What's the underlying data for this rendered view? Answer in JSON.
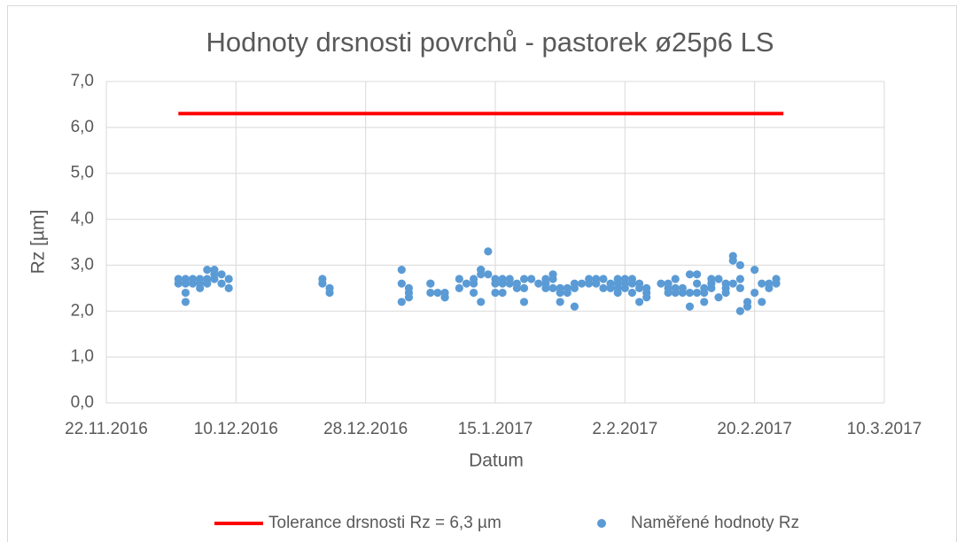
{
  "chart_data": {
    "type": "scatter",
    "title": "Hodnoty drsnosti povrchů - pastorek ø25p6 LS",
    "x_label": "Datum",
    "y_label": "Rz [µm]",
    "grid": true,
    "legend": "bottom",
    "xlim": [
      "2016-11-22",
      "2017-03-10"
    ],
    "xticks": [
      {
        "value": "2016-11-22",
        "label": "22.11.2016"
      },
      {
        "value": "2016-12-10",
        "label": "10.12.2016"
      },
      {
        "value": "2016-12-28",
        "label": "28.12.2016"
      },
      {
        "value": "2017-01-15",
        "label": "15.1.2017"
      },
      {
        "value": "2017-02-02",
        "label": "2.2.2017"
      },
      {
        "value": "2017-02-20",
        "label": "20.2.2017"
      },
      {
        "value": "2017-03-10",
        "label": "10.3.2017"
      }
    ],
    "ylim": [
      0,
      7
    ],
    "yticks": [
      {
        "value": 0,
        "label": "0,0"
      },
      {
        "value": 1,
        "label": "1,0"
      },
      {
        "value": 2,
        "label": "2,0"
      },
      {
        "value": 3,
        "label": "3,0"
      },
      {
        "value": 4,
        "label": "4,0"
      },
      {
        "value": 5,
        "label": "5,0"
      },
      {
        "value": 6,
        "label": "6,0"
      },
      {
        "value": 7,
        "label": "7,0"
      }
    ],
    "series": [
      {
        "name": "Tolerance drsnosti Rz = 6,3 µm",
        "color": "#ff0000",
        "mark": "line",
        "x": [
          "2016-12-02",
          "2017-02-24"
        ],
        "values": [
          6.3,
          6.3
        ]
      },
      {
        "name": "Naměřené hodnoty Rz",
        "color": "#5b9bd5",
        "mark": "point",
        "x": [
          "2016-12-02",
          "2016-12-02",
          "2016-12-03",
          "2016-12-03",
          "2016-12-03",
          "2016-12-03",
          "2016-12-04",
          "2016-12-04",
          "2016-12-05",
          "2016-12-05",
          "2016-12-05",
          "2016-12-06",
          "2016-12-06",
          "2016-12-06",
          "2016-12-07",
          "2016-12-07",
          "2016-12-07",
          "2016-12-08",
          "2016-12-08",
          "2016-12-09",
          "2016-12-09",
          "2016-12-22",
          "2016-12-22",
          "2016-12-23",
          "2016-12-23",
          "2017-01-02",
          "2017-01-02",
          "2017-01-02",
          "2017-01-03",
          "2017-01-03",
          "2017-01-03",
          "2017-01-06",
          "2017-01-06",
          "2017-01-06",
          "2017-01-07",
          "2017-01-08",
          "2017-01-08",
          "2017-01-08",
          "2017-01-10",
          "2017-01-10",
          "2017-01-11",
          "2017-01-12",
          "2017-01-12",
          "2017-01-12",
          "2017-01-13",
          "2017-01-13",
          "2017-01-13",
          "2017-01-13",
          "2017-01-14",
          "2017-01-14",
          "2017-01-15",
          "2017-01-15",
          "2017-01-15",
          "2017-01-16",
          "2017-01-16",
          "2017-01-16",
          "2017-01-17",
          "2017-01-17",
          "2017-01-18",
          "2017-01-18",
          "2017-01-19",
          "2017-01-19",
          "2017-01-19",
          "2017-01-20",
          "2017-01-21",
          "2017-01-22",
          "2017-01-22",
          "2017-01-22",
          "2017-01-23",
          "2017-01-23",
          "2017-01-23",
          "2017-01-24",
          "2017-01-24",
          "2017-01-24",
          "2017-01-25",
          "2017-01-25",
          "2017-01-26",
          "2017-01-26",
          "2017-01-26",
          "2017-01-27",
          "2017-01-28",
          "2017-01-28",
          "2017-01-29",
          "2017-01-29",
          "2017-01-30",
          "2017-01-30",
          "2017-01-31",
          "2017-01-31",
          "2017-02-01",
          "2017-02-01",
          "2017-02-01",
          "2017-02-01",
          "2017-02-02",
          "2017-02-02",
          "2017-02-02",
          "2017-02-03",
          "2017-02-03",
          "2017-02-03",
          "2017-02-04",
          "2017-02-04",
          "2017-02-04",
          "2017-02-05",
          "2017-02-05",
          "2017-02-05",
          "2017-02-07",
          "2017-02-08",
          "2017-02-08",
          "2017-02-08",
          "2017-02-09",
          "2017-02-09",
          "2017-02-09",
          "2017-02-10",
          "2017-02-10",
          "2017-02-11",
          "2017-02-11",
          "2017-02-11",
          "2017-02-12",
          "2017-02-12",
          "2017-02-12",
          "2017-02-13",
          "2017-02-13",
          "2017-02-13",
          "2017-02-14",
          "2017-02-14",
          "2017-02-14",
          "2017-02-15",
          "2017-02-15",
          "2017-02-16",
          "2017-02-16",
          "2017-02-16",
          "2017-02-17",
          "2017-02-17",
          "2017-02-17",
          "2017-02-18",
          "2017-02-18",
          "2017-02-18",
          "2017-02-18",
          "2017-02-19",
          "2017-02-19",
          "2017-02-20",
          "2017-02-20",
          "2017-02-21",
          "2017-02-21",
          "2017-02-22",
          "2017-02-22",
          "2017-02-23",
          "2017-02-23"
        ],
        "values": [
          2.6,
          2.7,
          2.2,
          2.4,
          2.7,
          2.6,
          2.6,
          2.7,
          2.7,
          2.6,
          2.5,
          2.9,
          2.7,
          2.6,
          2.9,
          2.7,
          2.8,
          2.8,
          2.6,
          2.5,
          2.7,
          2.6,
          2.7,
          2.5,
          2.4,
          2.9,
          2.2,
          2.6,
          2.5,
          2.4,
          2.3,
          2.4,
          2.6,
          2.6,
          2.4,
          2.3,
          2.4,
          2.3,
          2.5,
          2.7,
          2.6,
          2.4,
          2.6,
          2.7,
          2.9,
          2.9,
          2.8,
          2.2,
          3.3,
          2.8,
          2.7,
          2.6,
          2.4,
          2.4,
          2.6,
          2.7,
          2.7,
          2.6,
          2.6,
          2.5,
          2.2,
          2.7,
          2.5,
          2.7,
          2.6,
          2.5,
          2.6,
          2.7,
          2.8,
          2.7,
          2.5,
          2.5,
          2.4,
          2.2,
          2.4,
          2.5,
          2.6,
          2.5,
          2.1,
          2.6,
          2.6,
          2.7,
          2.7,
          2.6,
          2.5,
          2.7,
          2.5,
          2.6,
          2.4,
          2.7,
          2.5,
          2.6,
          2.6,
          2.7,
          2.5,
          2.4,
          2.7,
          2.6,
          2.5,
          2.2,
          2.6,
          2.4,
          2.3,
          2.5,
          2.6,
          2.5,
          2.6,
          2.4,
          2.7,
          2.5,
          2.4,
          2.4,
          2.5,
          2.8,
          2.4,
          2.1,
          2.8,
          2.6,
          2.4,
          2.5,
          2.2,
          2.4,
          2.6,
          2.7,
          2.5,
          2.7,
          2.3,
          2.4,
          2.6,
          2.5,
          3.2,
          3.1,
          2.6,
          3.0,
          2.0,
          2.7,
          2.5,
          2.2,
          2.1,
          2.4,
          2.9,
          2.6,
          2.2,
          2.5,
          2.6,
          2.7,
          2.6
        ]
      }
    ]
  }
}
